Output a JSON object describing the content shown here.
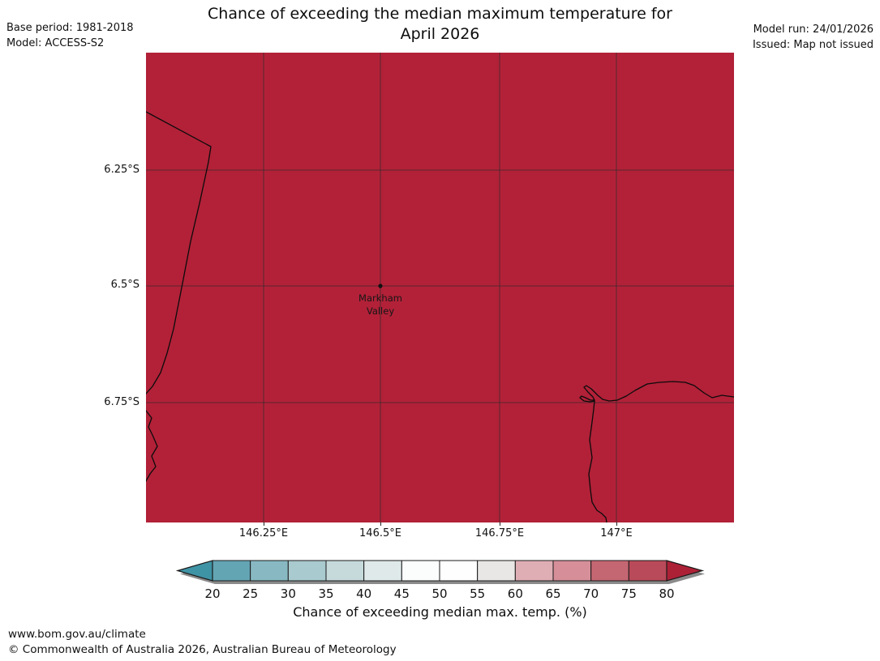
{
  "header": {
    "title_line1": "Chance of exceeding the median maximum temperature for",
    "title_line2": "April 2026",
    "base_period": "Base period: 1981-2018",
    "model": "Model: ACCESS-S2",
    "model_run": "Model run: 24/01/2026",
    "issued": "Issued: Map not issued"
  },
  "map": {
    "fill_color": "#b22138",
    "coastline_color": "#0b0b0b",
    "gridline_color": "#2b2b2b",
    "marker": {
      "label_line1": "Markham",
      "label_line2": "Valley"
    },
    "lat_ticks": [
      {
        "label": "6.25°S"
      },
      {
        "label": "6.5°S"
      },
      {
        "label": "6.75°S"
      }
    ],
    "lon_ticks": [
      {
        "label": "146.25°E"
      },
      {
        "label": "146.5°E"
      },
      {
        "label": "146.75°E"
      },
      {
        "label": "147°E"
      }
    ]
  },
  "colorbar": {
    "label": "Chance of exceeding median max. temp. (%)",
    "ticks": [
      "20",
      "25",
      "30",
      "35",
      "40",
      "45",
      "50",
      "55",
      "60",
      "65",
      "70",
      "75",
      "80"
    ],
    "segment_colors": [
      "#64a5b4",
      "#88b9c2",
      "#a9cacf",
      "#c6dadc",
      "#dfe9ea",
      "#fbfcfc",
      "#fefefe",
      "#e9e7e6",
      "#dfaeb5",
      "#d68f99",
      "#c56772",
      "#b94a59"
    ],
    "under_arrow_color": "#3e93a5",
    "over_arrow_color": "#ad2137",
    "outline_color": "#1a1a1a",
    "shadow_color": "#8a8a8a"
  },
  "footer": {
    "url": "www.bom.gov.au/climate",
    "copyright": "© Commonwealth of Australia 2026, Australian Bureau of Meteorology"
  }
}
